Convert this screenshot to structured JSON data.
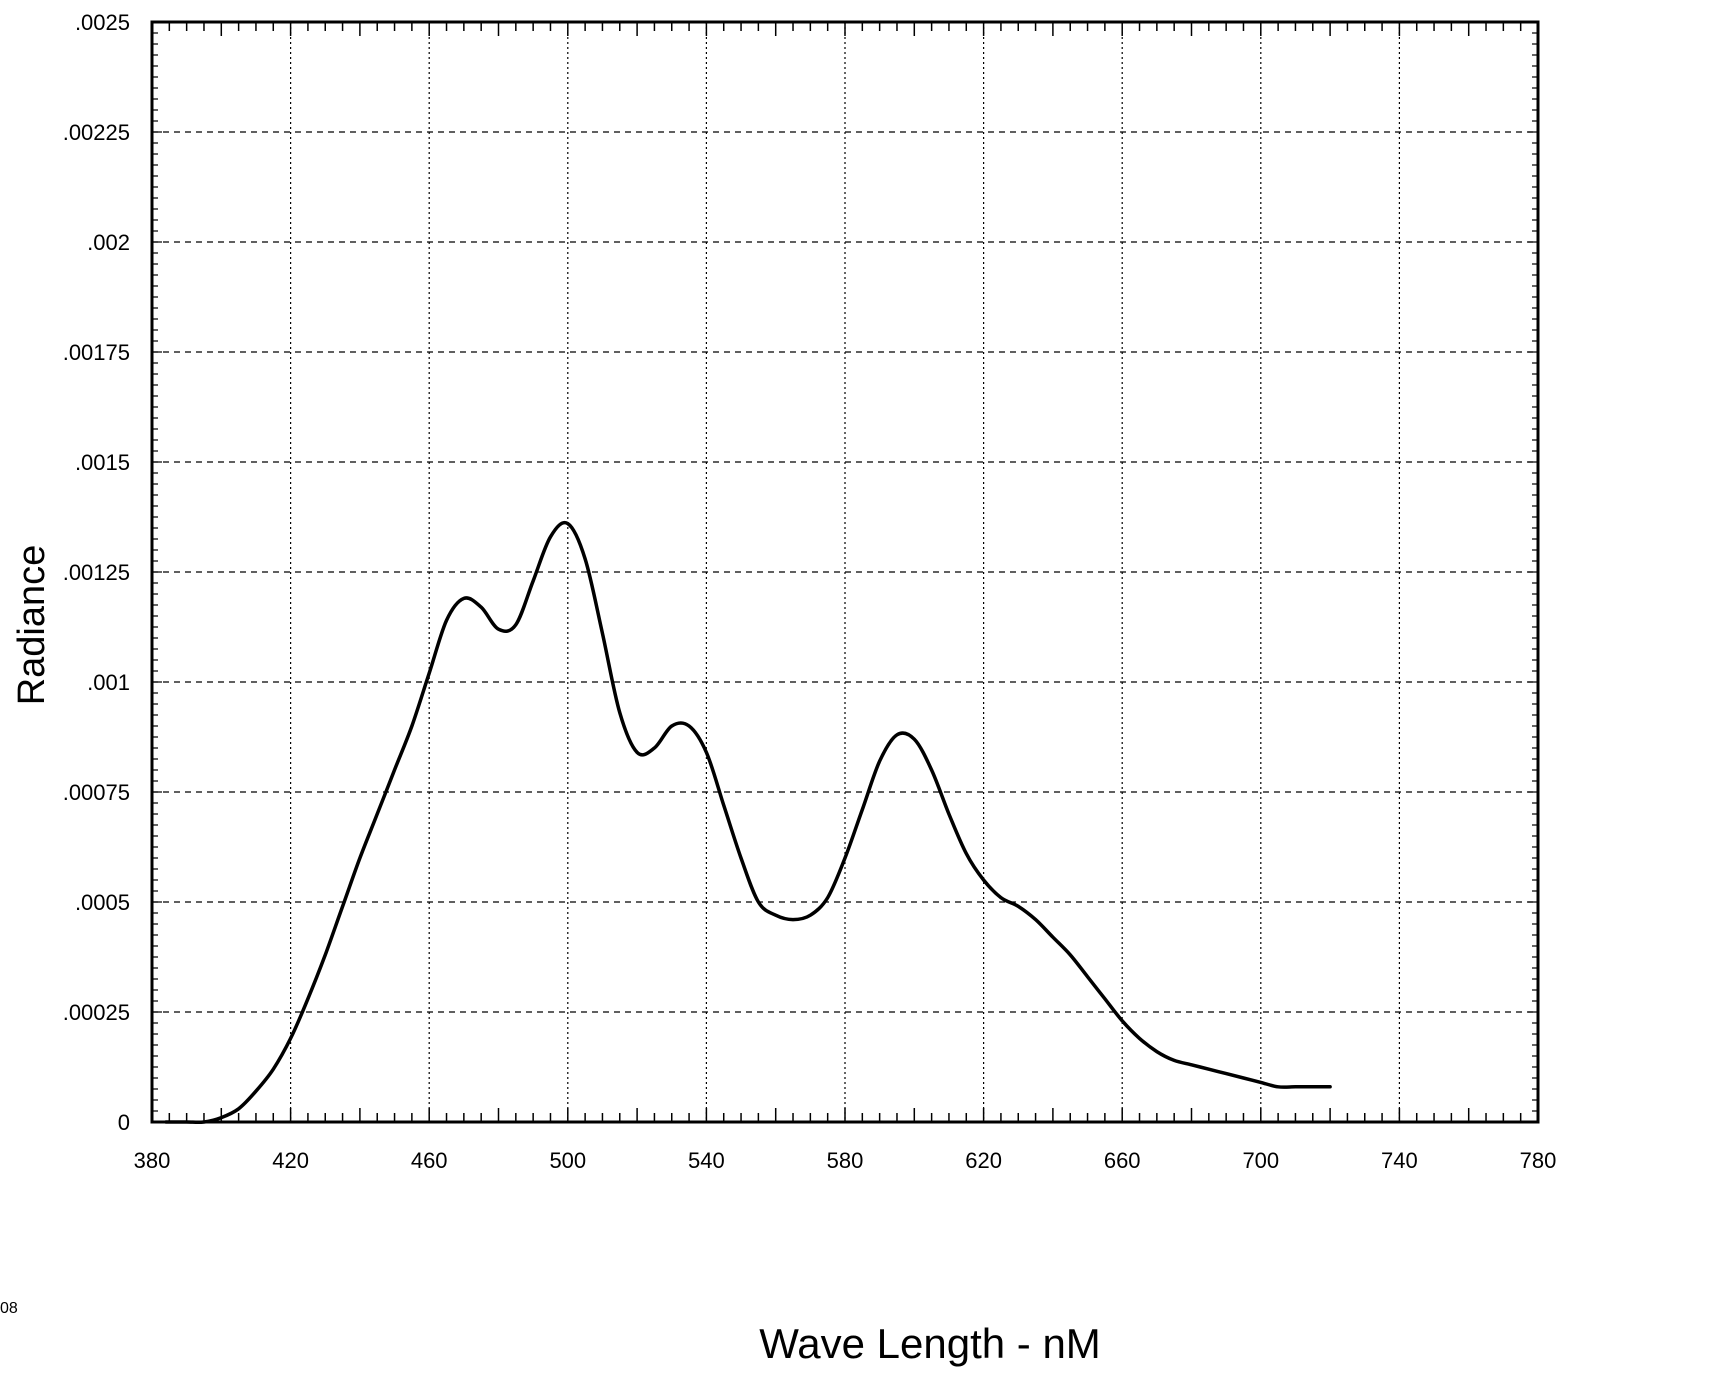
{
  "chart_data": {
    "type": "line",
    "xlabel": "Wave Length - nM",
    "ylabel": "Radiance",
    "xlim": [
      380,
      780
    ],
    "ylim": [
      0,
      0.0025
    ],
    "x_ticks": [
      "380",
      "420",
      "460",
      "500",
      "540",
      "580",
      "620",
      "660",
      "700",
      "740",
      "780"
    ],
    "y_ticks": [
      "0",
      ".00025",
      ".0005",
      ".00075",
      ".001",
      ".00125",
      ".0015",
      ".00175",
      ".002",
      ".00225",
      ".0025"
    ],
    "grid": true,
    "line_color": "#000000",
    "series": [
      {
        "x": [
          384,
          390,
          395,
          400,
          405,
          410,
          415,
          420,
          425,
          430,
          435,
          440,
          445,
          450,
          455,
          460,
          465,
          470,
          475,
          480,
          485,
          490,
          495,
          500,
          505,
          510,
          515,
          520,
          525,
          530,
          535,
          540,
          545,
          550,
          555,
          560,
          565,
          570,
          575,
          580,
          585,
          590,
          595,
          600,
          605,
          610,
          615,
          620,
          625,
          630,
          635,
          640,
          645,
          650,
          655,
          660,
          665,
          670,
          675,
          680,
          685,
          690,
          695,
          700,
          705,
          710,
          715,
          720
        ],
        "y": [
          0.0,
          0.0,
          0.0,
          1e-05,
          3e-05,
          7e-05,
          0.00012,
          0.00019,
          0.00028,
          0.00038,
          0.00049,
          0.0006,
          0.0007,
          0.0008,
          0.0009,
          0.00102,
          0.00114,
          0.00119,
          0.00117,
          0.00112,
          0.00113,
          0.00123,
          0.00133,
          0.00136,
          0.00128,
          0.00111,
          0.00093,
          0.00084,
          0.00085,
          0.0009,
          0.0009,
          0.00084,
          0.00072,
          0.0006,
          0.0005,
          0.00047,
          0.00046,
          0.00047,
          0.00051,
          0.0006,
          0.00071,
          0.00082,
          0.00088,
          0.00087,
          0.0008,
          0.0007,
          0.00061,
          0.00055,
          0.00051,
          0.00049,
          0.00046,
          0.00042,
          0.00038,
          0.00033,
          0.00028,
          0.00023,
          0.00019,
          0.00016,
          0.00014,
          0.00013,
          0.00012,
          0.00011,
          0.0001,
          9e-05,
          8e-05,
          8e-05,
          8e-05,
          8e-05
        ]
      }
    ]
  },
  "page": {
    "side_mark": "08"
  }
}
